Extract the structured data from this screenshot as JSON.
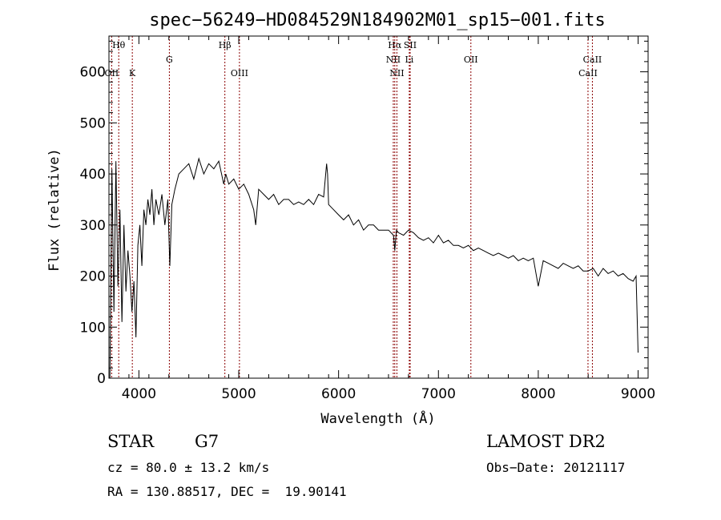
{
  "chart_data": {
    "type": "line",
    "title": "spec−56249−HD084529N184902M01_sp15−001.fits",
    "xlabel": "Wavelength (Å)",
    "ylabel": "Flux (relative)",
    "xlim": [
      3700,
      9100
    ],
    "ylim": [
      0,
      670
    ],
    "xticks": [
      4000,
      5000,
      6000,
      7000,
      8000,
      9000
    ],
    "yticks": [
      0,
      100,
      200,
      300,
      400,
      500,
      600
    ],
    "grid": false,
    "line_color": "#000000",
    "marker_color": "#8b0000",
    "spectral_lines": [
      {
        "label": "Hθ",
        "x": 3798,
        "row": 0
      },
      {
        "label": "OII",
        "x": 3727,
        "row": 2
      },
      {
        "label": "K",
        "x": 3934,
        "row": 2
      },
      {
        "label": "G",
        "x": 4305,
        "row": 1
      },
      {
        "label": "Hβ",
        "x": 4861,
        "row": 0
      },
      {
        "label": "OIII",
        "x": 5007,
        "row": 2
      },
      {
        "label": "Hα",
        "x": 6563,
        "row": 0
      },
      {
        "label": "SII",
        "x": 6717,
        "row": 0
      },
      {
        "label": "NII",
        "x": 6548,
        "row": 1
      },
      {
        "label": "Li",
        "x": 6708,
        "row": 1
      },
      {
        "label": "NII",
        "x": 6584,
        "row": 2
      },
      {
        "label": "OII",
        "x": 7325,
        "row": 1
      },
      {
        "label": "CaII",
        "x": 8542,
        "row": 1
      },
      {
        "label": "CaII",
        "x": 8498,
        "row": 2
      }
    ],
    "series": [
      {
        "x": [
          3710,
          3730,
          3750,
          3770,
          3790,
          3810,
          3830,
          3850,
          3870,
          3890,
          3910,
          3930,
          3950,
          3970,
          3990,
          4010,
          4030,
          4050,
          4070,
          4090,
          4110,
          4130,
          4150,
          4170,
          4200,
          4230,
          4260,
          4290,
          4310,
          4330,
          4360,
          4400,
          4450,
          4500,
          4550,
          4600,
          4650,
          4700,
          4750,
          4800,
          4850,
          4870,
          4900,
          4950,
          5000,
          5050,
          5100,
          5150,
          5170,
          5200,
          5250,
          5300,
          5350,
          5400,
          5450,
          5500,
          5550,
          5600,
          5650,
          5700,
          5750,
          5800,
          5850,
          5880,
          5890,
          5900,
          5950,
          6000,
          6050,
          6100,
          6150,
          6200,
          6250,
          6300,
          6350,
          6400,
          6450,
          6500,
          6550,
          6563,
          6580,
          6600,
          6650,
          6700,
          6750,
          6800,
          6850,
          6900,
          6950,
          7000,
          7050,
          7100,
          7150,
          7200,
          7250,
          7300,
          7350,
          7400,
          7450,
          7500,
          7550,
          7600,
          7650,
          7700,
          7750,
          7800,
          7850,
          7900,
          7950,
          8000,
          8050,
          8100,
          8150,
          8200,
          8250,
          8300,
          8350,
          8400,
          8450,
          8500,
          8550,
          8600,
          8650,
          8700,
          8750,
          8800,
          8850,
          8900,
          8950,
          8980,
          9000
        ],
        "values": [
          0,
          410,
          130,
          425,
          180,
          330,
          110,
          300,
          170,
          250,
          200,
          130,
          190,
          80,
          260,
          300,
          220,
          330,
          300,
          350,
          320,
          370,
          300,
          350,
          320,
          360,
          300,
          350,
          220,
          340,
          370,
          400,
          410,
          420,
          390,
          430,
          400,
          420,
          410,
          425,
          380,
          400,
          380,
          390,
          370,
          380,
          360,
          330,
          300,
          370,
          360,
          350,
          360,
          340,
          350,
          350,
          340,
          345,
          340,
          350,
          340,
          360,
          355,
          420,
          400,
          340,
          330,
          320,
          310,
          320,
          300,
          310,
          290,
          300,
          300,
          290,
          290,
          290,
          280,
          250,
          290,
          285,
          280,
          290,
          285,
          275,
          270,
          275,
          265,
          280,
          265,
          270,
          260,
          260,
          255,
          260,
          250,
          255,
          250,
          245,
          240,
          245,
          240,
          235,
          240,
          230,
          235,
          230,
          235,
          180,
          230,
          225,
          220,
          215,
          225,
          220,
          215,
          220,
          210,
          210,
          215,
          200,
          215,
          205,
          210,
          200,
          205,
          195,
          190,
          200,
          50
        ]
      }
    ]
  },
  "info": {
    "object_class": "STAR",
    "subclass": "G7",
    "survey": "LAMOST DR2",
    "redshift": "cz = 80.0 ± 13.2 km/s",
    "obs_date": "Obs−Date: 20121117",
    "coords": "RA = 130.88517, DEC =  19.90141"
  }
}
